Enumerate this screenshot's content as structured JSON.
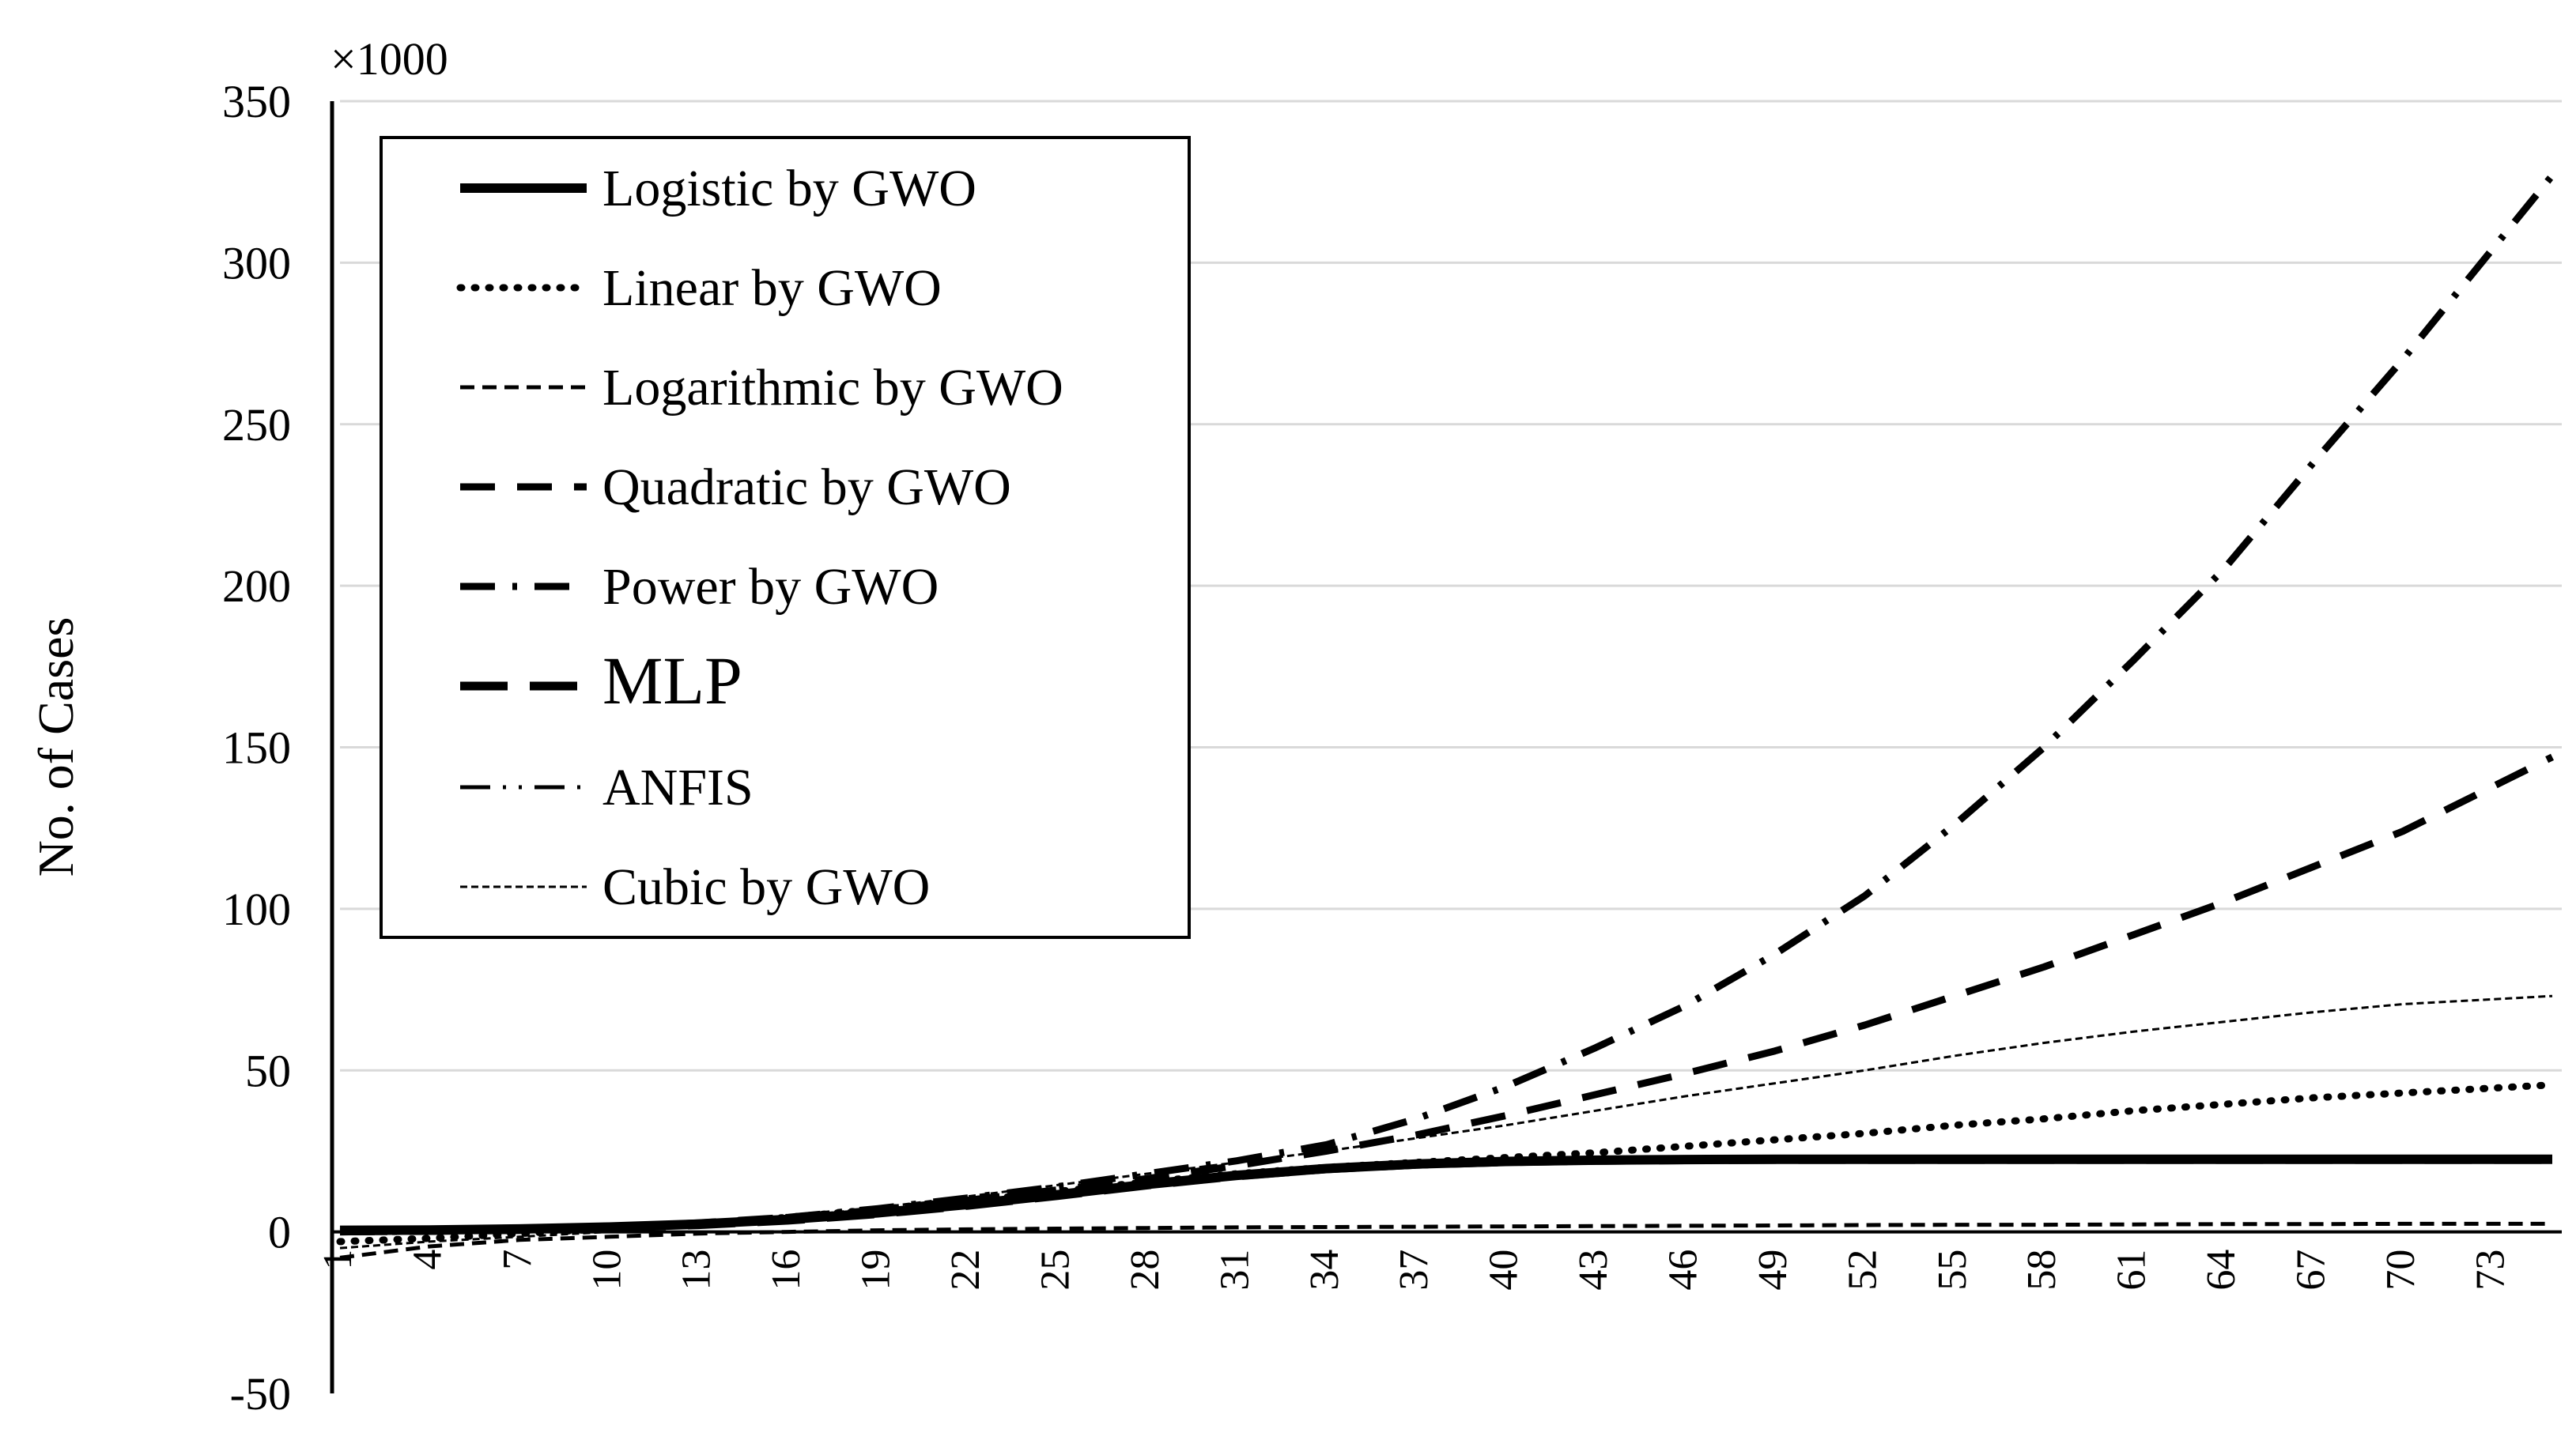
{
  "chart_data": {
    "type": "line",
    "ylabel": "No. of Cases",
    "xlabel": "",
    "multiplier_label": "×1000",
    "ylim": [
      -50,
      350
    ],
    "yticks": [
      -50,
      0,
      50,
      100,
      150,
      200,
      250,
      300,
      350
    ],
    "xlim": [
      1,
      75
    ],
    "xticks": [
      1,
      4,
      7,
      10,
      13,
      16,
      19,
      22,
      25,
      28,
      31,
      34,
      37,
      40,
      43,
      46,
      49,
      52,
      55,
      58,
      61,
      64,
      67,
      70,
      73
    ],
    "grid": "horizontal",
    "legend_position": "top-left",
    "series": [
      {
        "name": "Logistic by GWO",
        "style": "solid-thick",
        "points": [
          [
            1,
            0.5
          ],
          [
            4,
            0.6
          ],
          [
            7,
            0.9
          ],
          [
            10,
            1.5
          ],
          [
            13,
            2.4
          ],
          [
            16,
            3.9
          ],
          [
            19,
            5.9
          ],
          [
            22,
            8.5
          ],
          [
            25,
            11.5
          ],
          [
            28,
            14.7
          ],
          [
            31,
            17.5
          ],
          [
            34,
            19.6
          ],
          [
            37,
            21.0
          ],
          [
            40,
            21.8
          ],
          [
            43,
            22.2
          ],
          [
            46,
            22.4
          ],
          [
            49,
            22.5
          ],
          [
            52,
            22.5
          ],
          [
            55,
            22.5
          ],
          [
            60,
            22.5
          ],
          [
            65,
            22.5
          ],
          [
            70,
            22.5
          ],
          [
            75,
            22.5
          ]
        ]
      },
      {
        "name": "Linear by GWO",
        "style": "dotted",
        "points": [
          [
            1,
            -3
          ],
          [
            4,
            -2
          ],
          [
            7,
            -0.5
          ],
          [
            10,
            1
          ],
          [
            13,
            2.5
          ],
          [
            16,
            4.5
          ],
          [
            19,
            7
          ],
          [
            22,
            9.5
          ],
          [
            25,
            12.5
          ],
          [
            28,
            15.5
          ],
          [
            31,
            18
          ],
          [
            34,
            20
          ],
          [
            37,
            21.5
          ],
          [
            40,
            23
          ],
          [
            43,
            24.5
          ],
          [
            46,
            26.5
          ],
          [
            49,
            28.5
          ],
          [
            52,
            30.5
          ],
          [
            55,
            33
          ],
          [
            58,
            35
          ],
          [
            61,
            37.5
          ],
          [
            64,
            39.5
          ],
          [
            67,
            41.5
          ],
          [
            70,
            43
          ],
          [
            75,
            45.5
          ]
        ]
      },
      {
        "name": "Logarithmic by GWO",
        "style": "short-dash",
        "points": [
          [
            1,
            -8
          ],
          [
            4,
            -4.5
          ],
          [
            7,
            -2.5
          ],
          [
            10,
            -1.5
          ],
          [
            13,
            -0.5
          ],
          [
            16,
            0
          ],
          [
            19,
            0.5
          ],
          [
            22,
            0.8
          ],
          [
            25,
            1
          ],
          [
            28,
            1.2
          ],
          [
            31,
            1.4
          ],
          [
            34,
            1.5
          ],
          [
            37,
            1.6
          ],
          [
            40,
            1.7
          ],
          [
            43,
            1.8
          ],
          [
            46,
            1.9
          ],
          [
            49,
            2
          ],
          [
            52,
            2.1
          ],
          [
            55,
            2.2
          ],
          [
            58,
            2.2
          ],
          [
            61,
            2.3
          ],
          [
            64,
            2.4
          ],
          [
            67,
            2.4
          ],
          [
            70,
            2.5
          ],
          [
            75,
            2.5
          ]
        ]
      },
      {
        "name": "Quadratic by GWO",
        "style": "long-dash",
        "points": [
          [
            1,
            0
          ],
          [
            4,
            0.3
          ],
          [
            7,
            0.7
          ],
          [
            10,
            1.5
          ],
          [
            13,
            2.8
          ],
          [
            16,
            4.5
          ],
          [
            19,
            6.8
          ],
          [
            22,
            9.8
          ],
          [
            25,
            13
          ],
          [
            28,
            16.5
          ],
          [
            31,
            20.5
          ],
          [
            34,
            25
          ],
          [
            37,
            30
          ],
          [
            40,
            36
          ],
          [
            43,
            42.5
          ],
          [
            46,
            49
          ],
          [
            49,
            56
          ],
          [
            52,
            64
          ],
          [
            55,
            73
          ],
          [
            58,
            82
          ],
          [
            61,
            92
          ],
          [
            64,
            102
          ],
          [
            67,
            113
          ],
          [
            70,
            124
          ],
          [
            75,
            147
          ]
        ]
      },
      {
        "name": "Power by GWO",
        "style": "dash-dot",
        "points": [
          [
            1,
            0
          ],
          [
            4,
            0.2
          ],
          [
            7,
            0.5
          ],
          [
            10,
            1.2
          ],
          [
            13,
            2.5
          ],
          [
            16,
            4.5
          ],
          [
            19,
            7.2
          ],
          [
            22,
            10.5
          ],
          [
            25,
            14
          ],
          [
            28,
            18
          ],
          [
            31,
            22
          ],
          [
            34,
            27
          ],
          [
            37,
            35
          ],
          [
            40,
            45
          ],
          [
            43,
            57
          ],
          [
            46,
            70
          ],
          [
            49,
            86
          ],
          [
            52,
            104
          ],
          [
            55,
            126
          ],
          [
            58,
            150
          ],
          [
            61,
            177
          ],
          [
            64,
            205
          ],
          [
            67,
            238
          ],
          [
            70,
            270
          ],
          [
            75,
            327
          ]
        ]
      },
      {
        "name": "MLP",
        "style": "long-dash-thick",
        "points": [
          [
            1,
            0.3
          ],
          [
            4,
            0.4
          ],
          [
            7,
            0.7
          ],
          [
            10,
            1.3
          ],
          [
            13,
            2.2
          ],
          [
            16,
            3.6
          ],
          [
            19,
            5.6
          ],
          [
            22,
            8.2
          ],
          [
            25,
            11.2
          ],
          [
            28,
            14.5
          ],
          [
            31,
            17.3
          ],
          [
            34,
            19.5
          ],
          [
            37,
            20.9
          ],
          [
            40,
            21.7
          ],
          [
            43,
            22.1
          ],
          [
            46,
            22.3
          ],
          [
            49,
            22.4
          ],
          [
            55,
            22.4
          ],
          [
            65,
            22.4
          ],
          [
            75,
            22.4
          ]
        ]
      },
      {
        "name": "ANFIS",
        "style": "dash-dot-dot",
        "points": [
          [
            1,
            0.4
          ],
          [
            4,
            0.5
          ],
          [
            7,
            0.8
          ],
          [
            10,
            1.4
          ],
          [
            13,
            2.3
          ],
          [
            16,
            3.8
          ],
          [
            19,
            5.8
          ],
          [
            22,
            8.4
          ],
          [
            25,
            11.4
          ],
          [
            28,
            14.6
          ],
          [
            31,
            17.4
          ],
          [
            34,
            19.6
          ],
          [
            37,
            21
          ],
          [
            40,
            21.8
          ],
          [
            43,
            22.2
          ],
          [
            46,
            22.4
          ],
          [
            55,
            22.5
          ],
          [
            65,
            22.5
          ],
          [
            75,
            22.5
          ]
        ]
      },
      {
        "name": "Cubic by GWO",
        "style": "fine-dash",
        "points": [
          [
            1,
            -5
          ],
          [
            4,
            -3
          ],
          [
            7,
            -1.5
          ],
          [
            10,
            0
          ],
          [
            13,
            2
          ],
          [
            16,
            4.5
          ],
          [
            19,
            7.5
          ],
          [
            22,
            11
          ],
          [
            25,
            14.5
          ],
          [
            28,
            18
          ],
          [
            31,
            21.5
          ],
          [
            34,
            25
          ],
          [
            37,
            29
          ],
          [
            40,
            33
          ],
          [
            43,
            37.5
          ],
          [
            46,
            42
          ],
          [
            49,
            46
          ],
          [
            52,
            50
          ],
          [
            55,
            54.5
          ],
          [
            58,
            58.5
          ],
          [
            61,
            62
          ],
          [
            64,
            65
          ],
          [
            67,
            68
          ],
          [
            70,
            70.5
          ],
          [
            75,
            73
          ]
        ]
      }
    ]
  }
}
